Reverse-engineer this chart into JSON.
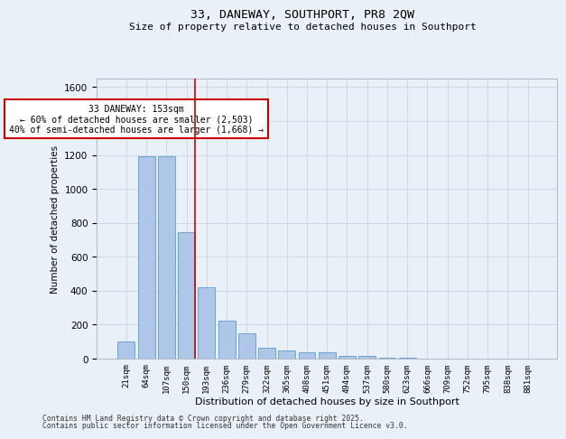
{
  "title_line1": "33, DANEWAY, SOUTHPORT, PR8 2QW",
  "title_line2": "Size of property relative to detached houses in Southport",
  "xlabel": "Distribution of detached houses by size in Southport",
  "ylabel": "Number of detached properties",
  "categories": [
    "21sqm",
    "64sqm",
    "107sqm",
    "150sqm",
    "193sqm",
    "236sqm",
    "279sqm",
    "322sqm",
    "365sqm",
    "408sqm",
    "451sqm",
    "494sqm",
    "537sqm",
    "580sqm",
    "623sqm",
    "666sqm",
    "709sqm",
    "752sqm",
    "795sqm",
    "838sqm",
    "881sqm"
  ],
  "values": [
    100,
    1190,
    1190,
    745,
    420,
    225,
    150,
    65,
    50,
    35,
    35,
    15,
    15,
    5,
    5,
    0,
    0,
    0,
    0,
    0,
    0
  ],
  "bar_color": "#aec6e8",
  "bar_edge_color": "#5b9bd5",
  "grid_color": "#d0d8e8",
  "bg_color": "#eaf0f8",
  "annotation_text": "33 DANEWAY: 153sqm\n← 60% of detached houses are smaller (2,503)\n40% of semi-detached houses are larger (1,668) →",
  "annotation_box_color": "#ffffff",
  "annotation_edge_color": "#cc0000",
  "ylim": [
    0,
    1650
  ],
  "yticks": [
    0,
    200,
    400,
    600,
    800,
    1000,
    1200,
    1400,
    1600
  ],
  "footer_line1": "Contains HM Land Registry data © Crown copyright and database right 2025.",
  "footer_line2": "Contains public sector information licensed under the Open Government Licence v3.0."
}
